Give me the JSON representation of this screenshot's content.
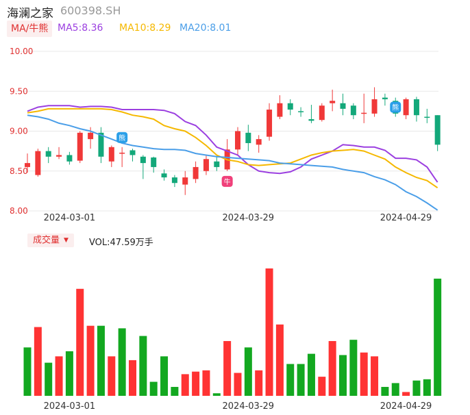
{
  "header": {
    "stock_name": "海澜之家",
    "stock_code": "600398.SH"
  },
  "legend": {
    "ma_button": "MA/牛熊",
    "ma5": "MA5:8.36",
    "ma10": "MA10:8.29",
    "ma20": "MA20:8.01"
  },
  "volume_panel": {
    "button": "成交量",
    "caret": "▼",
    "vol_text": "VOL:47.59万手"
  },
  "markers": {
    "bull": "牛",
    "bear": "熊"
  },
  "colors": {
    "up": "#f03838",
    "down": "#13a87a",
    "vol_up": "#ff3333",
    "vol_down": "#13a820",
    "ma5": "#9b3fe0",
    "ma10": "#f5b800",
    "ma20": "#4a9ee8",
    "axis_text": "#e03030"
  },
  "chart_data": [
    {
      "type": "candlestick",
      "y_ticks": [
        "10.00",
        "9.50",
        "9.00",
        "8.50",
        "8.00"
      ],
      "ylim": [
        8.0,
        10.0
      ],
      "x_tick_labels": [
        {
          "index": 1,
          "label": "2024-03-01"
        },
        {
          "index": 18,
          "label": "2024-03-29"
        },
        {
          "index": 33,
          "label": "2024-04-29"
        }
      ],
      "candles": [
        {
          "o": 8.55,
          "c": 8.6,
          "h": 8.72,
          "l": 8.48
        },
        {
          "o": 8.45,
          "c": 8.75,
          "h": 8.78,
          "l": 8.43
        },
        {
          "o": 8.75,
          "c": 8.68,
          "h": 8.8,
          "l": 8.6
        },
        {
          "o": 8.68,
          "c": 8.7,
          "h": 8.8,
          "l": 8.65
        },
        {
          "o": 8.7,
          "c": 8.62,
          "h": 8.74,
          "l": 8.58
        },
        {
          "o": 8.63,
          "c": 8.98,
          "h": 9.0,
          "l": 8.6
        },
        {
          "o": 8.9,
          "c": 8.98,
          "h": 9.05,
          "l": 8.78
        },
        {
          "o": 8.98,
          "c": 8.68,
          "h": 9.05,
          "l": 8.6
        },
        {
          "o": 8.62,
          "c": 8.8,
          "h": 8.82,
          "l": 8.55
        },
        {
          "o": 8.72,
          "c": 8.73,
          "h": 8.8,
          "l": 8.55
        },
        {
          "o": 8.76,
          "c": 8.7,
          "h": 8.78,
          "l": 8.62
        },
        {
          "o": 8.68,
          "c": 8.6,
          "h": 8.7,
          "l": 8.4
        },
        {
          "o": 8.67,
          "c": 8.55,
          "h": 8.68,
          "l": 8.48
        },
        {
          "o": 8.47,
          "c": 8.42,
          "h": 8.52,
          "l": 8.38
        },
        {
          "o": 8.42,
          "c": 8.35,
          "h": 8.45,
          "l": 8.3
        },
        {
          "o": 8.33,
          "c": 8.42,
          "h": 8.5,
          "l": 8.2
        },
        {
          "o": 8.4,
          "c": 8.55,
          "h": 8.62,
          "l": 8.35
        },
        {
          "o": 8.5,
          "c": 8.65,
          "h": 8.7,
          "l": 8.45
        },
        {
          "o": 8.62,
          "c": 8.55,
          "h": 8.68,
          "l": 8.5
        },
        {
          "o": 8.52,
          "c": 8.77,
          "h": 8.9,
          "l": 8.5
        },
        {
          "o": 8.77,
          "c": 9.0,
          "h": 9.05,
          "l": 8.7
        },
        {
          "o": 8.98,
          "c": 8.85,
          "h": 9.08,
          "l": 8.75
        },
        {
          "o": 8.83,
          "c": 8.9,
          "h": 8.95,
          "l": 8.73
        },
        {
          "o": 8.93,
          "c": 9.27,
          "h": 9.35,
          "l": 8.88
        },
        {
          "o": 9.18,
          "c": 9.35,
          "h": 9.45,
          "l": 9.15
        },
        {
          "o": 9.35,
          "c": 9.27,
          "h": 9.4,
          "l": 9.2
        },
        {
          "o": 9.25,
          "c": 9.24,
          "h": 9.3,
          "l": 9.18
        },
        {
          "o": 9.15,
          "c": 9.13,
          "h": 9.33,
          "l": 9.1
        },
        {
          "o": 9.14,
          "c": 9.32,
          "h": 9.35,
          "l": 9.12
        },
        {
          "o": 9.35,
          "c": 9.38,
          "h": 9.52,
          "l": 9.25
        },
        {
          "o": 9.35,
          "c": 9.28,
          "h": 9.47,
          "l": 9.2
        },
        {
          "o": 9.32,
          "c": 9.2,
          "h": 9.35,
          "l": 9.15
        },
        {
          "o": 9.22,
          "c": 9.23,
          "h": 9.47,
          "l": 9.1
        },
        {
          "o": 9.22,
          "c": 9.4,
          "h": 9.55,
          "l": 9.18
        },
        {
          "o": 9.42,
          "c": 9.4,
          "h": 9.47,
          "l": 9.32
        },
        {
          "o": 9.38,
          "c": 9.22,
          "h": 9.42,
          "l": 9.18
        },
        {
          "o": 9.2,
          "c": 9.4,
          "h": 9.42,
          "l": 9.15
        },
        {
          "o": 9.4,
          "c": 9.2,
          "h": 9.43,
          "l": 9.12
        },
        {
          "o": 9.18,
          "c": 9.17,
          "h": 9.28,
          "l": 9.1
        },
        {
          "o": 9.2,
          "c": 8.83,
          "h": 9.2,
          "l": 8.75
        }
      ],
      "ma5": [
        9.25,
        9.3,
        9.32,
        9.32,
        9.32,
        9.3,
        9.31,
        9.31,
        9.3,
        9.27,
        9.27,
        9.27,
        9.27,
        9.26,
        9.22,
        9.12,
        9.07,
        8.95,
        8.8,
        8.75,
        8.7,
        8.58,
        8.5,
        8.48,
        8.47,
        8.49,
        8.55,
        8.65,
        8.7,
        8.75,
        8.83,
        8.82,
        8.8,
        8.8,
        8.76,
        8.66,
        8.66,
        8.64,
        8.55,
        8.36
      ],
      "ma10": [
        9.23,
        9.25,
        9.28,
        9.28,
        9.28,
        9.28,
        9.28,
        9.28,
        9.27,
        9.24,
        9.2,
        9.18,
        9.15,
        9.07,
        9.03,
        9.0,
        8.92,
        8.82,
        8.7,
        8.64,
        8.62,
        8.58,
        8.57,
        8.58,
        8.59,
        8.6,
        8.65,
        8.7,
        8.73,
        8.75,
        8.76,
        8.77,
        8.75,
        8.7,
        8.65,
        8.55,
        8.48,
        8.42,
        8.38,
        8.29
      ],
      "ma20": [
        9.2,
        9.18,
        9.15,
        9.1,
        9.07,
        9.03,
        9.0,
        8.95,
        8.9,
        8.85,
        8.82,
        8.8,
        8.78,
        8.77,
        8.77,
        8.76,
        8.72,
        8.7,
        8.68,
        8.67,
        8.66,
        8.65,
        8.64,
        8.63,
        8.6,
        8.59,
        8.58,
        8.57,
        8.56,
        8.55,
        8.52,
        8.5,
        8.48,
        8.43,
        8.39,
        8.33,
        8.24,
        8.18,
        8.1,
        8.01
      ]
    },
    {
      "type": "bar",
      "name": "",
      "values": [
        0.38,
        0.54,
        0.26,
        0.31,
        0.35,
        0.84,
        0.55,
        0.55,
        0.31,
        0.53,
        0.28,
        0.47,
        0.11,
        0.31,
        0.07,
        0.17,
        0.19,
        0.2,
        0.02,
        0.43,
        0.18,
        0.38,
        0.2,
        1.0,
        0.56,
        0.25,
        0.25,
        0.33,
        0.15,
        0.43,
        0.32,
        0.44,
        0.34,
        0.31,
        0.07,
        0.1,
        0.03,
        0.12,
        0.13,
        0.92
      ],
      "value_unit": "relative to max",
      "up": [
        false,
        true,
        false,
        true,
        false,
        true,
        true,
        false,
        true,
        false,
        true,
        false,
        false,
        false,
        false,
        true,
        true,
        true,
        false,
        true,
        true,
        false,
        true,
        true,
        true,
        false,
        false,
        false,
        true,
        true,
        false,
        false,
        true,
        true,
        false,
        false,
        true,
        false,
        false,
        false
      ]
    }
  ]
}
